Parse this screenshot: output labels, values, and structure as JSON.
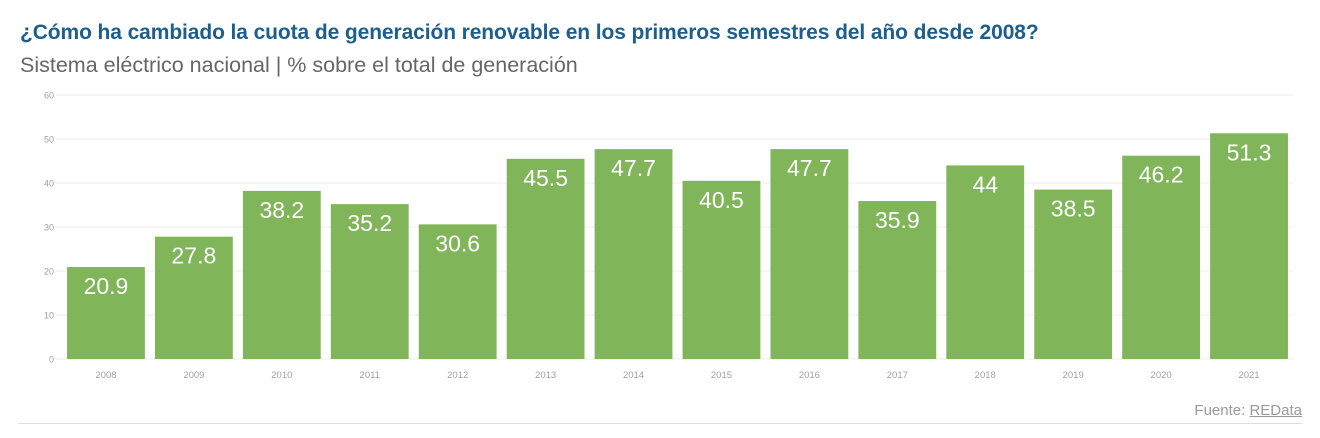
{
  "header": {
    "title": "¿Cómo ha cambiado la cuota de generación renovable en los primeros semestres del año desde 2008?",
    "subtitle": "Sistema eléctrico nacional | % sobre el total de generación"
  },
  "footer": {
    "source_prefix": "Fuente: ",
    "source_link": "REData"
  },
  "colors": {
    "bar": "#80b55a",
    "title": "#1d5f8c",
    "bar_label": "#ffffff",
    "grid": "#ececec",
    "tick_label": "#a0a0a0"
  },
  "chart_data": {
    "type": "bar",
    "title": "¿Cómo ha cambiado la cuota de generación renovable en los primeros semestres del año desde 2008?",
    "subtitle": "Sistema eléctrico nacional | % sobre el total de generación",
    "xlabel": "",
    "ylabel": "",
    "categories": [
      "2008",
      "2009",
      "2010",
      "2011",
      "2012",
      "2013",
      "2014",
      "2015",
      "2016",
      "2017",
      "2018",
      "2019",
      "2020",
      "2021"
    ],
    "values": [
      20.9,
      27.8,
      38.2,
      35.2,
      30.6,
      45.5,
      47.7,
      40.5,
      47.7,
      35.9,
      44,
      38.5,
      46.2,
      51.3
    ],
    "data_labels": [
      "20.9",
      "27.8",
      "38.2",
      "35.2",
      "30.6",
      "45.5",
      "47.7",
      "40.5",
      "47.7",
      "35.9",
      "44",
      "38.5",
      "46.2",
      "51.3"
    ],
    "ylim": [
      0,
      60
    ],
    "yticks": [
      0,
      10,
      20,
      30,
      40,
      50,
      60
    ],
    "grid": true,
    "legend": "none"
  }
}
